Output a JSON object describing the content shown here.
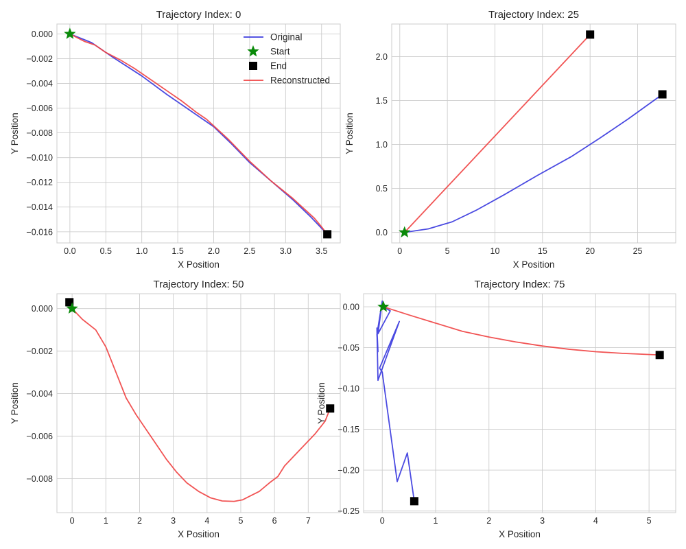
{
  "chart_data": [
    {
      "type": "line",
      "title": "Trajectory Index: 0",
      "xlabel": "X Position",
      "ylabel": "Y Position",
      "xlim": [
        -0.18,
        3.76
      ],
      "ylim": [
        -0.0169,
        0.0008
      ],
      "xticks": [
        0.0,
        0.5,
        1.0,
        1.5,
        2.0,
        2.5,
        3.0,
        3.5
      ],
      "xtick_labels": [
        "0.0",
        "0.5",
        "1.0",
        "1.5",
        "2.0",
        "2.5",
        "3.0",
        "3.5"
      ],
      "yticks": [
        0.0,
        -0.002,
        -0.004,
        -0.006,
        -0.008,
        -0.01,
        -0.012,
        -0.014,
        -0.016
      ],
      "ytick_labels": [
        "0.000",
        "−0.002",
        "−0.004",
        "−0.006",
        "−0.008",
        "−0.010",
        "−0.012",
        "−0.014",
        "−0.016"
      ],
      "grid": true,
      "legend": {
        "position": "top-right",
        "entries": [
          {
            "label": "Original",
            "kind": "line",
            "color": "#3b3bde"
          },
          {
            "label": "Start",
            "kind": "star",
            "color": "#0a8a0a"
          },
          {
            "label": "End",
            "kind": "square",
            "color": "#000000"
          },
          {
            "label": "Reconstructed",
            "kind": "line",
            "color": "#f04545"
          }
        ]
      },
      "series": [
        {
          "name": "Original",
          "color": "#3b3bde",
          "x": [
            0,
            0.3,
            0.6,
            1.0,
            1.35,
            1.7,
            2.0,
            2.25,
            2.5,
            2.8,
            3.1,
            3.35,
            3.58
          ],
          "y": [
            0,
            -0.0007,
            -0.0019,
            -0.0034,
            -0.0049,
            -0.0063,
            -0.0075,
            -0.0089,
            -0.0104,
            -0.0119,
            -0.0134,
            -0.0148,
            -0.0162
          ]
        },
        {
          "name": "Reconstructed",
          "color": "#f04545",
          "x": [
            0,
            0.1,
            0.2,
            0.35,
            0.5,
            0.7,
            0.9,
            1.1,
            1.35,
            1.55,
            1.75,
            1.9,
            2.05,
            2.2,
            2.35,
            2.5,
            2.65,
            2.8,
            2.95,
            3.1,
            3.25,
            3.4,
            3.5,
            3.58
          ],
          "y": [
            0,
            -0.0003,
            -0.0006,
            -0.0009,
            -0.0015,
            -0.0021,
            -0.0028,
            -0.0036,
            -0.0046,
            -0.0054,
            -0.0063,
            -0.0069,
            -0.0077,
            -0.0085,
            -0.0094,
            -0.0103,
            -0.0111,
            -0.0119,
            -0.0126,
            -0.0133,
            -0.0141,
            -0.0149,
            -0.0156,
            -0.0162
          ]
        }
      ],
      "start": {
        "x": 0.0,
        "y": 0.0
      },
      "end": {
        "x": 3.58,
        "y": -0.0162
      }
    },
    {
      "type": "line",
      "title": "Trajectory Index: 25",
      "xlabel": "X Position",
      "ylabel": "Y Position",
      "xlim": [
        -0.85,
        29.0
      ],
      "ylim": [
        -0.12,
        2.37
      ],
      "xticks": [
        0,
        5,
        10,
        15,
        20,
        25
      ],
      "xtick_labels": [
        "0",
        "5",
        "10",
        "15",
        "20",
        "25"
      ],
      "yticks": [
        0.0,
        0.5,
        1.0,
        1.5,
        2.0
      ],
      "ytick_labels": [
        "0.0",
        "0.5",
        "1.0",
        "1.5",
        "2.0"
      ],
      "grid": true,
      "series": [
        {
          "name": "Original",
          "color": "#3b3bde",
          "x": [
            0.5,
            3.0,
            5.5,
            8.0,
            11.0,
            14.5,
            18.0,
            21.0,
            24.0,
            27.6
          ],
          "y": [
            0.0,
            0.04,
            0.12,
            0.25,
            0.43,
            0.65,
            0.86,
            1.07,
            1.29,
            1.57
          ]
        },
        {
          "name": "Reconstructed",
          "color": "#f04545",
          "x": [
            0.5,
            20.0
          ],
          "y": [
            0.0,
            2.25
          ]
        }
      ],
      "start": {
        "x": 0.5,
        "y": 0.0
      },
      "end_original": {
        "x": 27.6,
        "y": 1.57
      },
      "end_reconstructed": {
        "x": 20.0,
        "y": 2.25
      }
    },
    {
      "type": "line",
      "title": "Trajectory Index: 50",
      "xlabel": "X Position",
      "ylabel": "Y Position",
      "xlim": [
        -0.45,
        7.95
      ],
      "ylim": [
        -0.0096,
        0.0007
      ],
      "xticks": [
        0,
        1,
        2,
        3,
        4,
        5,
        6,
        7
      ],
      "xtick_labels": [
        "0",
        "1",
        "2",
        "3",
        "4",
        "5",
        "6",
        "7"
      ],
      "yticks": [
        0.0,
        -0.002,
        -0.004,
        -0.006,
        -0.008
      ],
      "ytick_labels": [
        "0.000",
        "−0.002",
        "−0.004",
        "−0.006",
        "−0.008"
      ],
      "grid": true,
      "series": [
        {
          "name": "Reconstructed",
          "color": "#f04545",
          "x": [
            0.0,
            0.3,
            0.7,
            1.0,
            1.3,
            1.6,
            1.9,
            2.2,
            2.5,
            2.8,
            3.1,
            3.4,
            3.75,
            4.1,
            4.45,
            4.8,
            5.05,
            5.3,
            5.55,
            5.85,
            6.1,
            6.3,
            6.6,
            6.9,
            7.2,
            7.5,
            7.65
          ],
          "y": [
            0.0,
            -0.0005,
            -0.001,
            -0.0018,
            -0.003,
            -0.0042,
            -0.005,
            -0.0057,
            -0.0064,
            -0.0071,
            -0.0077,
            -0.0082,
            -0.0086,
            -0.0089,
            -0.00905,
            -0.00907,
            -0.009,
            -0.0088,
            -0.0086,
            -0.0082,
            -0.0079,
            -0.0074,
            -0.0069,
            -0.0064,
            -0.0059,
            -0.0053,
            -0.0047
          ]
        }
      ],
      "start": {
        "x": 0.0,
        "y": 0.0
      },
      "end_points": [
        {
          "x": -0.08,
          "y": 0.0003
        },
        {
          "x": 7.65,
          "y": -0.0047
        }
      ]
    },
    {
      "type": "line",
      "title": "Trajectory Index: 75",
      "xlabel": "X Position",
      "ylabel": "Y Position",
      "xlim": [
        -0.35,
        5.5
      ],
      "ylim": [
        -0.252,
        0.016
      ],
      "xticks": [
        0,
        1,
        2,
        3,
        4,
        5
      ],
      "xtick_labels": [
        "0",
        "1",
        "2",
        "3",
        "4",
        "5"
      ],
      "yticks": [
        0.0,
        -0.05,
        -0.1,
        -0.15,
        -0.2,
        -0.25
      ],
      "ytick_labels": [
        "0.00",
        "−0.05",
        "−0.10",
        "−0.15",
        "−0.20",
        "−0.25"
      ],
      "grid": true,
      "series": [
        {
          "name": "Original",
          "color": "#3b3bde",
          "x": [
            0.02,
            0.15,
            -0.08,
            0.0,
            -0.1,
            -0.08,
            -0.1,
            -0.08,
            0.32,
            -0.05,
            0.0,
            0.28,
            0.47,
            0.6
          ],
          "y": [
            0.0,
            -0.005,
            -0.033,
            0.007,
            -0.034,
            -0.055,
            -0.026,
            -0.09,
            -0.018,
            -0.075,
            -0.08,
            -0.214,
            -0.179,
            -0.238
          ]
        },
        {
          "name": "Reconstructed",
          "color": "#f04545",
          "x": [
            0.02,
            0.5,
            1.0,
            1.5,
            2.0,
            2.5,
            3.0,
            3.5,
            4.0,
            4.5,
            5.2
          ],
          "y": [
            0.0,
            -0.01,
            -0.02,
            -0.03,
            -0.037,
            -0.043,
            -0.048,
            -0.052,
            -0.055,
            -0.057,
            -0.059
          ]
        }
      ],
      "start": {
        "x": 0.02,
        "y": 0.0
      },
      "end_original": {
        "x": 0.6,
        "y": -0.238
      },
      "end_reconstructed": {
        "x": 5.2,
        "y": -0.059
      }
    }
  ]
}
